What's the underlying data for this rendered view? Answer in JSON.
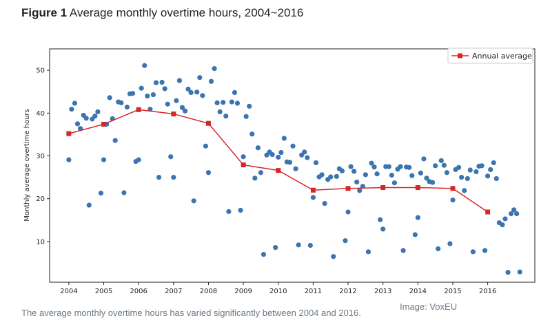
{
  "figure": {
    "number": "Figure 1",
    "title": "Average monthly overtime hours, 2004~2016",
    "caption": "The average monthly overtime hours has varied significantly between 2004 and 2016.",
    "credit": "Image: VoxEU"
  },
  "colors": {
    "scatter": "#3b75af",
    "annual_line": "#d62728",
    "axis": "#222222",
    "caption": "#6b7a87"
  },
  "chart_data": {
    "type": "scatter",
    "title": "",
    "xlabel": "",
    "ylabel": "Monthly average overtime hours",
    "xlim": [
      2003.45,
      2017.35
    ],
    "ylim": [
      0.5,
      55
    ],
    "x_ticks": [
      2004,
      2005,
      2006,
      2007,
      2008,
      2009,
      2010,
      2011,
      2012,
      2013,
      2014,
      2015,
      2016
    ],
    "y_ticks": [
      10,
      20,
      30,
      40,
      50
    ],
    "grid": false,
    "legend": {
      "position": "top-right",
      "entries": [
        "Annual average"
      ]
    },
    "series": [
      {
        "kind": "scatter",
        "points": [
          [
            2004.0,
            29.1
          ],
          [
            2004.08,
            40.9
          ],
          [
            2004.17,
            42.3
          ],
          [
            2004.25,
            37.5
          ],
          [
            2004.33,
            36.4
          ],
          [
            2004.42,
            39.5
          ],
          [
            2004.5,
            38.8
          ],
          [
            2004.58,
            18.5
          ],
          [
            2004.67,
            38.6
          ],
          [
            2004.75,
            39.3
          ],
          [
            2004.83,
            40.3
          ],
          [
            2004.92,
            21.3
          ],
          [
            2005.0,
            29.1
          ],
          [
            2005.08,
            37.4
          ],
          [
            2005.17,
            43.6
          ],
          [
            2005.25,
            38.7
          ],
          [
            2005.33,
            33.6
          ],
          [
            2005.42,
            42.6
          ],
          [
            2005.5,
            42.4
          ],
          [
            2005.58,
            21.4
          ],
          [
            2005.67,
            41.4
          ],
          [
            2005.75,
            44.5
          ],
          [
            2005.83,
            44.6
          ],
          [
            2005.92,
            28.7
          ],
          [
            2006.0,
            29.1
          ],
          [
            2006.08,
            45.8
          ],
          [
            2006.17,
            51.1
          ],
          [
            2006.25,
            44.0
          ],
          [
            2006.33,
            40.9
          ],
          [
            2006.42,
            44.3
          ],
          [
            2006.5,
            47.1
          ],
          [
            2006.58,
            25.0
          ],
          [
            2006.67,
            47.2
          ],
          [
            2006.75,
            45.7
          ],
          [
            2006.83,
            42.1
          ],
          [
            2006.92,
            29.8
          ],
          [
            2007.0,
            25.0
          ],
          [
            2007.08,
            42.9
          ],
          [
            2007.17,
            47.6
          ],
          [
            2007.25,
            41.3
          ],
          [
            2007.33,
            40.5
          ],
          [
            2007.42,
            45.6
          ],
          [
            2007.5,
            44.8
          ],
          [
            2007.58,
            19.5
          ],
          [
            2007.67,
            44.9
          ],
          [
            2007.75,
            48.3
          ],
          [
            2007.83,
            44.1
          ],
          [
            2007.92,
            32.3
          ],
          [
            2008.0,
            26.1
          ],
          [
            2008.08,
            47.4
          ],
          [
            2008.17,
            50.4
          ],
          [
            2008.25,
            42.4
          ],
          [
            2008.33,
            40.3
          ],
          [
            2008.42,
            42.5
          ],
          [
            2008.5,
            39.3
          ],
          [
            2008.58,
            17.0
          ],
          [
            2008.67,
            42.6
          ],
          [
            2008.75,
            44.8
          ],
          [
            2008.83,
            42.3
          ],
          [
            2008.92,
            17.3
          ],
          [
            2009.0,
            29.8
          ],
          [
            2009.08,
            39.2
          ],
          [
            2009.17,
            41.6
          ],
          [
            2009.25,
            35.1
          ],
          [
            2009.33,
            24.8
          ],
          [
            2009.42,
            31.9
          ],
          [
            2009.5,
            26.1
          ],
          [
            2009.58,
            7.0
          ],
          [
            2009.67,
            30.2
          ],
          [
            2009.75,
            30.9
          ],
          [
            2009.83,
            30.3
          ],
          [
            2009.92,
            8.6
          ],
          [
            2010.0,
            29.7
          ],
          [
            2010.08,
            30.8
          ],
          [
            2010.17,
            34.1
          ],
          [
            2010.25,
            28.6
          ],
          [
            2010.33,
            28.5
          ],
          [
            2010.42,
            32.3
          ],
          [
            2010.5,
            27.0
          ],
          [
            2010.58,
            9.2
          ],
          [
            2010.67,
            30.2
          ],
          [
            2010.75,
            30.9
          ],
          [
            2010.83,
            29.6
          ],
          [
            2010.92,
            9.1
          ],
          [
            2011.0,
            20.3
          ],
          [
            2011.08,
            28.4
          ],
          [
            2011.17,
            25.1
          ],
          [
            2011.25,
            25.6
          ],
          [
            2011.33,
            18.9
          ],
          [
            2011.42,
            24.5
          ],
          [
            2011.5,
            25.1
          ],
          [
            2011.58,
            6.5
          ],
          [
            2011.67,
            25.2
          ],
          [
            2011.75,
            27.0
          ],
          [
            2011.83,
            26.5
          ],
          [
            2011.92,
            10.2
          ],
          [
            2012.0,
            16.9
          ],
          [
            2012.08,
            27.5
          ],
          [
            2012.17,
            26.4
          ],
          [
            2012.25,
            23.9
          ],
          [
            2012.33,
            21.9
          ],
          [
            2012.42,
            22.9
          ],
          [
            2012.5,
            25.6
          ],
          [
            2012.58,
            7.6
          ],
          [
            2012.67,
            28.3
          ],
          [
            2012.75,
            27.4
          ],
          [
            2012.83,
            25.8
          ],
          [
            2012.92,
            15.1
          ],
          [
            2013.0,
            12.9
          ],
          [
            2013.08,
            27.5
          ],
          [
            2013.17,
            27.5
          ],
          [
            2013.25,
            25.5
          ],
          [
            2013.33,
            23.7
          ],
          [
            2013.42,
            26.9
          ],
          [
            2013.5,
            27.5
          ],
          [
            2013.58,
            7.9
          ],
          [
            2013.67,
            27.4
          ],
          [
            2013.75,
            27.3
          ],
          [
            2013.83,
            25.4
          ],
          [
            2013.92,
            11.6
          ],
          [
            2014.0,
            15.6
          ],
          [
            2014.08,
            26.0
          ],
          [
            2014.17,
            29.3
          ],
          [
            2014.25,
            24.8
          ],
          [
            2014.33,
            24.0
          ],
          [
            2014.42,
            23.8
          ],
          [
            2014.5,
            27.7
          ],
          [
            2014.58,
            8.3
          ],
          [
            2014.67,
            28.9
          ],
          [
            2014.75,
            27.8
          ],
          [
            2014.83,
            26.1
          ],
          [
            2014.92,
            9.5
          ],
          [
            2015.0,
            19.7
          ],
          [
            2015.08,
            26.8
          ],
          [
            2015.17,
            27.3
          ],
          [
            2015.25,
            25.0
          ],
          [
            2015.33,
            21.9
          ],
          [
            2015.42,
            24.7
          ],
          [
            2015.5,
            26.7
          ],
          [
            2015.58,
            7.6
          ],
          [
            2015.67,
            26.3
          ],
          [
            2015.75,
            27.6
          ],
          [
            2015.83,
            27.7
          ],
          [
            2015.92,
            7.9
          ],
          [
            2016.0,
            25.3
          ],
          [
            2016.08,
            26.8
          ],
          [
            2016.17,
            28.4
          ],
          [
            2016.25,
            24.7
          ],
          [
            2016.33,
            14.4
          ],
          [
            2016.42,
            13.9
          ],
          [
            2016.5,
            15.3
          ],
          [
            2016.58,
            2.8
          ],
          [
            2016.67,
            16.5
          ],
          [
            2016.75,
            17.4
          ],
          [
            2016.83,
            16.5
          ],
          [
            2016.92,
            2.9
          ]
        ]
      },
      {
        "name": "Annual average",
        "kind": "line",
        "points": [
          [
            2004,
            35.2
          ],
          [
            2005,
            37.4
          ],
          [
            2006,
            40.8
          ],
          [
            2007,
            39.8
          ],
          [
            2008,
            37.6
          ],
          [
            2009,
            27.9
          ],
          [
            2010,
            26.6
          ],
          [
            2011,
            22.0
          ],
          [
            2012,
            22.4
          ],
          [
            2013,
            22.6
          ],
          [
            2014,
            22.6
          ],
          [
            2015,
            22.4
          ],
          [
            2016,
            16.9
          ]
        ]
      }
    ]
  }
}
